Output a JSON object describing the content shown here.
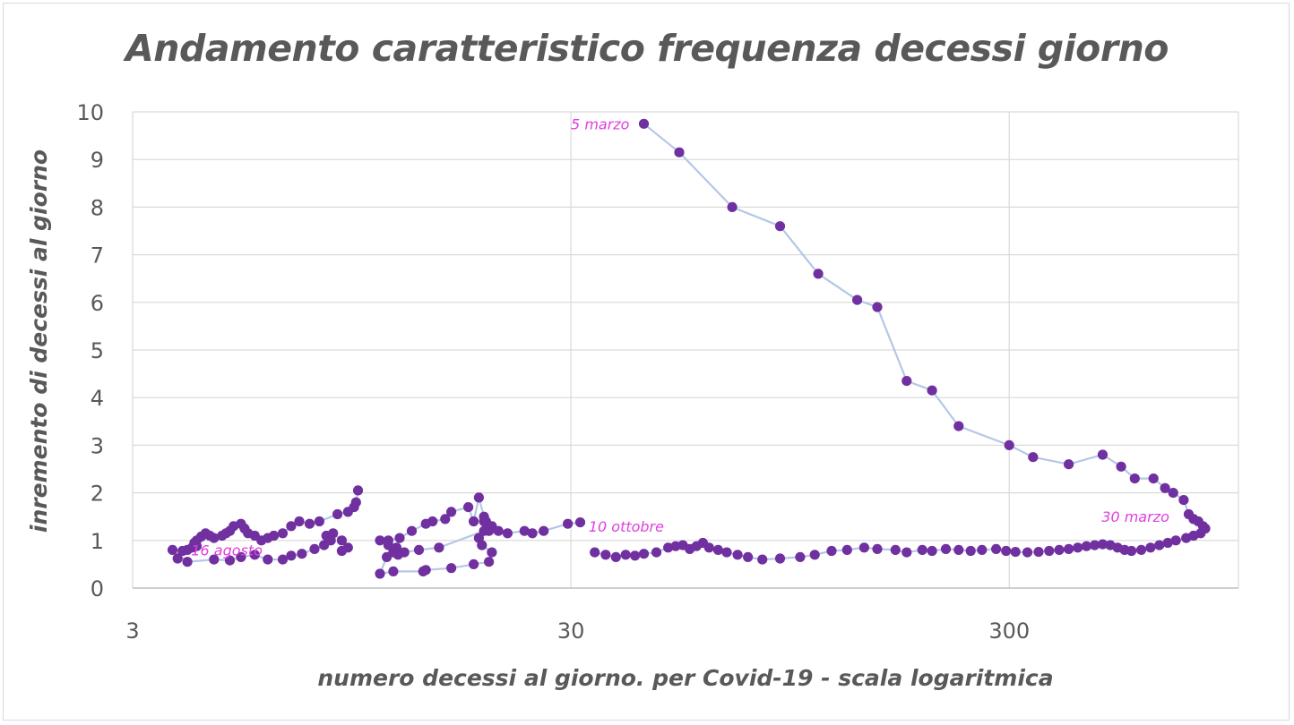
{
  "chart_data": {
    "type": "scatter",
    "title": "Andamento caratteristico frequenza decessi giorno",
    "xlabel": "numero decessi al giorno. per Covid-19 - scala logaritmica",
    "ylabel": "inremento di decessi al giorno",
    "x_scale": "log",
    "xlim": [
      3,
      1000
    ],
    "ylim": [
      0,
      10
    ],
    "x_ticks": [
      "3",
      "30",
      "300"
    ],
    "y_ticks": [
      "0",
      "1",
      "2",
      "3",
      "4",
      "5",
      "6",
      "7",
      "8",
      "9",
      "10"
    ],
    "grid": true,
    "legend": "none",
    "colors": {
      "marker": "#7030a0",
      "line": "#b4c7e7",
      "annotation": "#e040e0",
      "grid": "#d9d9d9"
    },
    "annotations": [
      {
        "text": "5 marzo",
        "x": 44,
        "y": 9.75,
        "anchor": "end"
      },
      {
        "text": "30 marzo",
        "x": 750,
        "y": 1.5,
        "anchor": "end"
      },
      {
        "text": "10 ottobre",
        "x": 32,
        "y": 1.3,
        "anchor": "start"
      },
      {
        "text": "16 agosto",
        "x": 6.4,
        "y": 0.8,
        "anchor": "end"
      }
    ],
    "series": [
      {
        "points": [
          [
            44,
            9.75
          ],
          [
            53,
            9.15
          ],
          [
            70,
            8.0
          ],
          [
            90,
            7.6
          ],
          [
            110,
            6.6
          ],
          [
            135,
            6.05
          ],
          [
            150,
            5.9
          ],
          [
            175,
            4.35
          ],
          [
            200,
            4.15
          ],
          [
            230,
            3.4
          ],
          [
            300,
            3.0
          ],
          [
            340,
            2.75
          ],
          [
            410,
            2.6
          ],
          [
            490,
            2.8
          ],
          [
            540,
            2.55
          ],
          [
            580,
            2.3
          ],
          [
            640,
            2.3
          ],
          [
            680,
            2.1
          ],
          [
            710,
            2.0
          ],
          [
            750,
            1.85
          ],
          [
            770,
            1.55
          ],
          [
            790,
            1.45
          ],
          [
            810,
            1.4
          ],
          [
            830,
            1.3
          ],
          [
            840,
            1.25
          ],
          [
            820,
            1.15
          ],
          [
            790,
            1.1
          ],
          [
            760,
            1.05
          ],
          [
            720,
            1.0
          ],
          [
            690,
            0.95
          ],
          [
            660,
            0.9
          ],
          [
            630,
            0.85
          ],
          [
            600,
            0.8
          ],
          [
            570,
            0.78
          ],
          [
            550,
            0.8
          ],
          [
            530,
            0.85
          ],
          [
            510,
            0.9
          ],
          [
            490,
            0.92
          ],
          [
            470,
            0.9
          ],
          [
            450,
            0.88
          ],
          [
            430,
            0.85
          ],
          [
            410,
            0.82
          ],
          [
            390,
            0.8
          ],
          [
            370,
            0.78
          ],
          [
            350,
            0.76
          ],
          [
            330,
            0.75
          ],
          [
            310,
            0.76
          ],
          [
            295,
            0.78
          ],
          [
            280,
            0.82
          ],
          [
            260,
            0.8
          ],
          [
            245,
            0.78
          ],
          [
            230,
            0.8
          ],
          [
            215,
            0.82
          ],
          [
            200,
            0.78
          ],
          [
            190,
            0.8
          ],
          [
            175,
            0.75
          ],
          [
            165,
            0.8
          ],
          [
            150,
            0.82
          ],
          [
            140,
            0.85
          ],
          [
            128,
            0.8
          ],
          [
            118,
            0.78
          ],
          [
            108,
            0.7
          ],
          [
            100,
            0.65
          ],
          [
            90,
            0.62
          ],
          [
            82,
            0.6
          ],
          [
            76,
            0.65
          ],
          [
            72,
            0.7
          ],
          [
            68,
            0.75
          ],
          [
            65,
            0.8
          ],
          [
            62,
            0.85
          ],
          [
            60,
            0.95
          ],
          [
            58,
            0.88
          ],
          [
            56,
            0.82
          ],
          [
            54,
            0.9
          ],
          [
            52,
            0.88
          ],
          [
            50,
            0.85
          ],
          [
            47,
            0.75
          ],
          [
            44,
            0.72
          ],
          [
            42,
            0.68
          ],
          [
            40,
            0.7
          ],
          [
            38,
            0.65
          ],
          [
            36,
            0.7
          ],
          [
            34,
            0.75
          ]
        ]
      },
      {
        "points": [
          [
            31.5,
            1.38
          ],
          [
            29.5,
            1.35
          ],
          [
            26,
            1.2
          ],
          [
            24.5,
            1.15
          ],
          [
            23.5,
            1.2
          ],
          [
            21.5,
            1.15
          ],
          [
            20.5,
            1.2
          ],
          [
            19.5,
            1.3
          ],
          [
            19.2,
            1.4
          ],
          [
            19,
            1.5
          ],
          [
            18.5,
            1.9
          ],
          [
            18,
            1.4
          ],
          [
            17.5,
            1.7
          ],
          [
            16,
            1.6
          ],
          [
            15.5,
            1.45
          ],
          [
            14.5,
            1.4
          ],
          [
            14,
            1.35
          ],
          [
            13,
            1.2
          ],
          [
            12.2,
            1.05
          ],
          [
            11.5,
            1.0
          ],
          [
            11.8,
            0.75
          ],
          [
            12.1,
            0.7
          ],
          [
            11.4,
            0.65
          ],
          [
            11.0,
            0.3
          ],
          [
            11.8,
            0.35
          ],
          [
            13.8,
            0.35
          ],
          [
            14.0,
            0.38
          ],
          [
            16,
            0.42
          ],
          [
            18,
            0.5
          ],
          [
            19.5,
            0.55
          ],
          [
            19.8,
            0.75
          ],
          [
            18.8,
            0.9
          ],
          [
            18.5,
            1.05
          ],
          [
            19.5,
            1.2
          ],
          [
            19.8,
            1.3
          ],
          [
            19.0,
            1.4
          ],
          [
            19.0,
            1.2
          ],
          [
            15,
            0.85
          ],
          [
            13.5,
            0.8
          ],
          [
            12.5,
            0.75
          ],
          [
            12,
            0.85
          ],
          [
            11.5,
            0.9
          ],
          [
            11,
            1.0
          ]
        ]
      },
      {
        "points": [
          [
            9.8,
            2.05
          ],
          [
            9.7,
            1.8
          ],
          [
            9.6,
            1.7
          ],
          [
            9.3,
            1.6
          ],
          [
            8.8,
            1.55
          ],
          [
            8.0,
            1.4
          ],
          [
            7.6,
            1.35
          ],
          [
            7.2,
            1.4
          ],
          [
            6.9,
            1.3
          ],
          [
            6.6,
            1.15
          ],
          [
            6.3,
            1.1
          ],
          [
            6.1,
            1.05
          ],
          [
            5.9,
            1.0
          ],
          [
            5.7,
            1.1
          ],
          [
            5.5,
            1.15
          ],
          [
            5.4,
            1.25
          ],
          [
            5.3,
            1.35
          ],
          [
            5.1,
            1.3
          ],
          [
            5.0,
            1.2
          ],
          [
            4.9,
            1.15
          ],
          [
            4.8,
            1.1
          ],
          [
            4.6,
            1.05
          ],
          [
            4.5,
            1.1
          ],
          [
            4.4,
            1.15
          ],
          [
            4.3,
            1.08
          ],
          [
            4.2,
            1.0
          ],
          [
            4.15,
            0.95
          ],
          [
            4.2,
            0.88
          ],
          [
            4.1,
            0.85
          ],
          [
            4.0,
            0.8
          ],
          [
            3.9,
            0.78
          ],
          [
            3.8,
            0.62
          ],
          [
            3.7,
            0.8
          ],
          [
            4.0,
            0.55
          ],
          [
            4.6,
            0.6
          ],
          [
            5.0,
            0.58
          ],
          [
            5.3,
            0.65
          ],
          [
            5.7,
            0.7
          ],
          [
            6.1,
            0.6
          ],
          [
            6.6,
            0.6
          ],
          [
            6.9,
            0.68
          ],
          [
            7.3,
            0.72
          ],
          [
            7.8,
            0.82
          ],
          [
            8.2,
            0.9
          ],
          [
            8.5,
            1.0
          ],
          [
            8.3,
            1.1
          ],
          [
            8.6,
            1.15
          ],
          [
            9.0,
            1.0
          ],
          [
            9.3,
            0.85
          ],
          [
            9.0,
            0.78
          ]
        ]
      }
    ]
  }
}
